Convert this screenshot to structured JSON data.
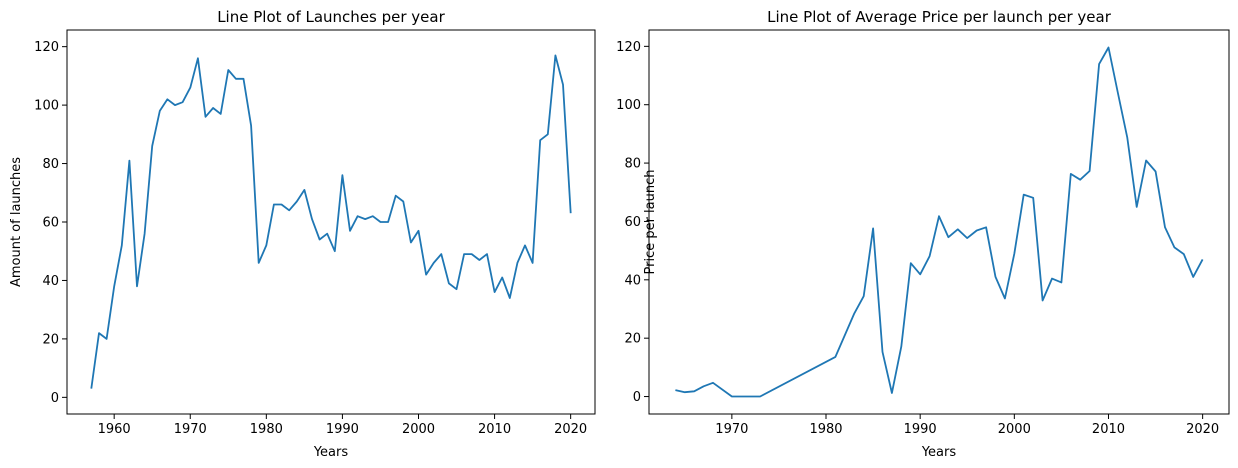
{
  "chart_data": [
    {
      "type": "line",
      "title": "Line Plot of Launches per year",
      "xlabel": "Years",
      "ylabel": "Amount of launches",
      "xlim": [
        1953.8,
        2023.2
      ],
      "ylim": [
        -5.7,
        125.7
      ],
      "xticks": [
        1960,
        1970,
        1980,
        1990,
        2000,
        2010,
        2020
      ],
      "yticks": [
        0,
        20,
        40,
        60,
        80,
        100,
        120
      ],
      "grid": false,
      "color": "#1f77b4",
      "x": [
        1957,
        1958,
        1959,
        1960,
        1961,
        1962,
        1963,
        1964,
        1965,
        1966,
        1967,
        1968,
        1969,
        1970,
        1971,
        1972,
        1973,
        1974,
        1975,
        1976,
        1977,
        1978,
        1979,
        1980,
        1981,
        1982,
        1983,
        1984,
        1985,
        1986,
        1987,
        1988,
        1989,
        1990,
        1991,
        1992,
        1993,
        1994,
        1995,
        1996,
        1997,
        1998,
        1999,
        2000,
        2001,
        2002,
        2003,
        2004,
        2005,
        2006,
        2007,
        2008,
        2009,
        2010,
        2011,
        2012,
        2013,
        2014,
        2015,
        2016,
        2017,
        2018,
        2019,
        2020
      ],
      "y": [
        3,
        22,
        20,
        38,
        52,
        81,
        38,
        56,
        86,
        98,
        102,
        100,
        101,
        106,
        116,
        96,
        99,
        97,
        112,
        109,
        109,
        93,
        46,
        52,
        66,
        66,
        64,
        67,
        71,
        61,
        54,
        56,
        50,
        76,
        57,
        62,
        61,
        62,
        60,
        60,
        69,
        67,
        53,
        57,
        42,
        46,
        49,
        39,
        37,
        49,
        49,
        47,
        49,
        36,
        41,
        34,
        46,
        52,
        46,
        88,
        90,
        117,
        107,
        63
      ]
    },
    {
      "type": "line",
      "title": "Line Plot of Average Price per launch per year",
      "xlabel": "Years",
      "ylabel": "Price per launch",
      "xlim": [
        1961.2,
        2022.8
      ],
      "ylim": [
        -5.98,
        125.6
      ],
      "xticks": [
        1970,
        1980,
        1990,
        2000,
        2010,
        2020
      ],
      "yticks": [
        0,
        20,
        40,
        60,
        80,
        100,
        120
      ],
      "grid": false,
      "color": "#1f77b4",
      "x": [
        1964,
        1965,
        1966,
        1967,
        1968,
        1970,
        1972,
        1973,
        1981,
        1983,
        1984,
        1985,
        1986,
        1987,
        1988,
        1989,
        1990,
        1991,
        1992,
        1993,
        1994,
        1995,
        1996,
        1997,
        1998,
        1999,
        2000,
        2001,
        2002,
        2003,
        2004,
        2005,
        2006,
        2007,
        2008,
        2009,
        2010,
        2011,
        2012,
        2013,
        2014,
        2015,
        2016,
        2017,
        2018,
        2019,
        2020
      ],
      "y": [
        2.2,
        1.5,
        1.8,
        3.5,
        4.7,
        0,
        0,
        0,
        13.6,
        28.5,
        34.4,
        57.6,
        15.3,
        1.2,
        17.1,
        45.7,
        41.9,
        48.1,
        61.8,
        54.6,
        57.3,
        54.3,
        56.9,
        58.0,
        41.0,
        33.6,
        48.9,
        69.2,
        68.1,
        32.9,
        40.4,
        39.1,
        76.3,
        74.3,
        77.3,
        113.9,
        119.6,
        104.0,
        88.7,
        65.0,
        80.9,
        77.1,
        58.0,
        51.1,
        48.8,
        41.0,
        47.0
      ]
    }
  ]
}
